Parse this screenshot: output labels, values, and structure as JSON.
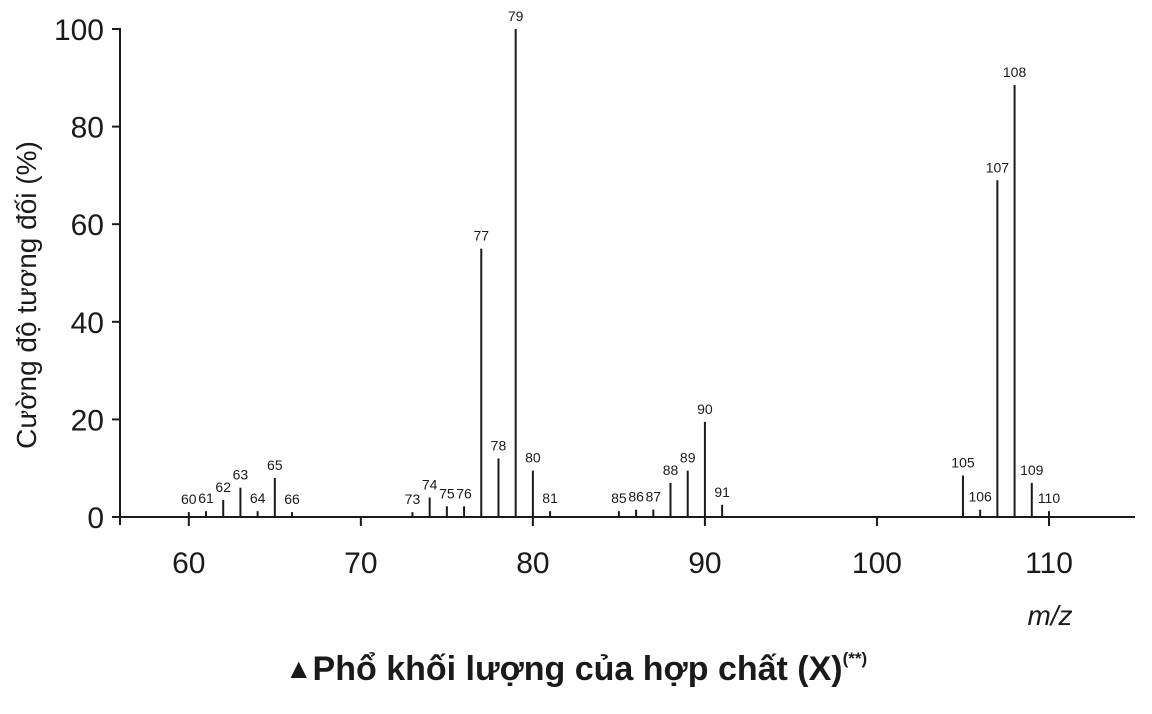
{
  "chart_data": {
    "type": "bar",
    "xlabel": "m/z",
    "ylabel": "Cường độ tương đối (%)",
    "xlim": [
      56,
      115
    ],
    "ylim": [
      0,
      100
    ],
    "xticks": [
      60,
      70,
      80,
      90,
      100,
      110
    ],
    "yticks": [
      0,
      20,
      40,
      60,
      80,
      100
    ],
    "grid": false,
    "x": [
      60,
      61,
      62,
      63,
      64,
      65,
      66,
      73,
      74,
      75,
      76,
      77,
      78,
      79,
      80,
      81,
      85,
      86,
      87,
      88,
      89,
      90,
      91,
      105,
      106,
      107,
      108,
      109,
      110
    ],
    "values": [
      1,
      1.2,
      3.5,
      6,
      1.2,
      8,
      1,
      1,
      4,
      2.2,
      2.2,
      55,
      12,
      100,
      9.5,
      1.2,
      1.2,
      1.5,
      1.5,
      7,
      9.5,
      19.5,
      2.5,
      8.5,
      1.5,
      69,
      88.5,
      7,
      1.2
    ],
    "labels": [
      "60",
      "61",
      "62",
      "63",
      "64",
      "65",
      "66",
      "73",
      "74",
      "75",
      "76",
      "77",
      "78",
      "79",
      "80",
      "81",
      "85",
      "86",
      "87",
      "88",
      "89",
      "90",
      "91",
      "105",
      "106",
      "107",
      "108",
      "109",
      "110"
    ]
  },
  "caption": {
    "marker": "▲",
    "text": "Phổ khối lượng của hợp chất (X)",
    "superscript": "(**)"
  }
}
